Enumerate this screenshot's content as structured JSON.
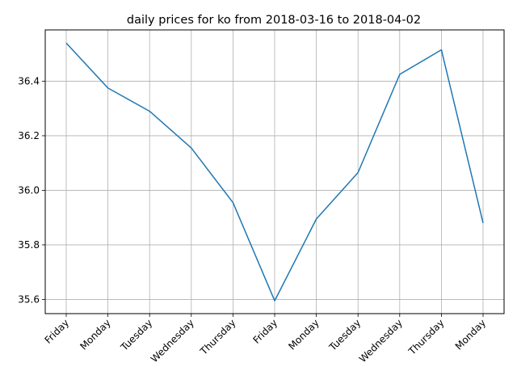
{
  "chart_data": {
    "type": "line",
    "title": "daily prices for ko from 2018-03-16 to 2018-04-02",
    "xlabel": "",
    "ylabel": "",
    "categories": [
      "Friday",
      "Monday",
      "Tuesday",
      "Wednesday",
      "Thursday",
      "Friday",
      "Monday",
      "Tuesday",
      "Wednesday",
      "Thursday",
      "Monday"
    ],
    "series": [
      {
        "values": [
          36.54,
          36.375,
          36.29,
          36.155,
          35.955,
          35.595,
          35.895,
          36.065,
          36.425,
          36.515,
          35.88
        ]
      }
    ],
    "ylim": [
      35.548,
      36.588
    ],
    "yticks": [
      35.6,
      35.8,
      36.0,
      36.2,
      36.4
    ],
    "ytick_labels": [
      "35.6",
      "35.8",
      "36.0",
      "36.2",
      "36.4"
    ],
    "grid": true,
    "legend": "none",
    "colors": {
      "line": "#1f77b4",
      "grid": "#b0b0b0",
      "axis": "#000000"
    }
  }
}
